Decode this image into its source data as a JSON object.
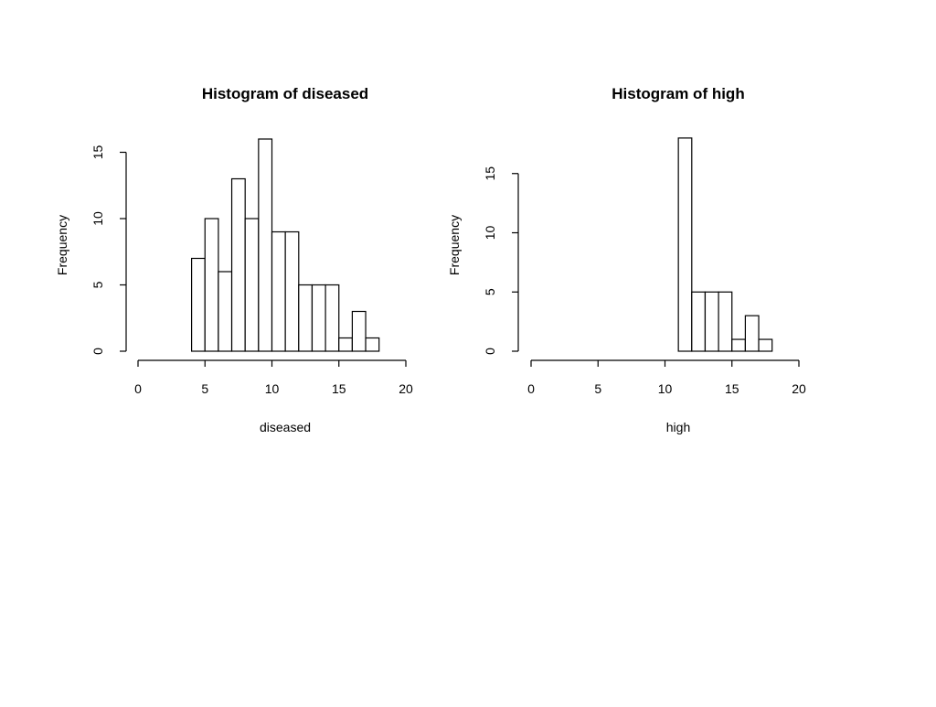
{
  "chart_data": [
    {
      "type": "bar",
      "title": "Histogram of diseased",
      "xlabel": "diseased",
      "ylabel": "Frequency",
      "xlim": [
        0,
        20
      ],
      "ylim": [
        0,
        16
      ],
      "x_ticks": [
        "0",
        "5",
        "10",
        "15",
        "20"
      ],
      "y_ticks": [
        "0",
        "5",
        "10",
        "15"
      ],
      "bin_width": 1,
      "bins": [
        {
          "start": 4,
          "end": 5,
          "count": 7
        },
        {
          "start": 5,
          "end": 6,
          "count": 10
        },
        {
          "start": 6,
          "end": 7,
          "count": 6
        },
        {
          "start": 7,
          "end": 8,
          "count": 13
        },
        {
          "start": 8,
          "end": 9,
          "count": 10
        },
        {
          "start": 9,
          "end": 10,
          "count": 16
        },
        {
          "start": 10,
          "end": 11,
          "count": 9
        },
        {
          "start": 11,
          "end": 12,
          "count": 9
        },
        {
          "start": 12,
          "end": 13,
          "count": 5
        },
        {
          "start": 13,
          "end": 14,
          "count": 5
        },
        {
          "start": 14,
          "end": 15,
          "count": 5
        },
        {
          "start": 15,
          "end": 16,
          "count": 1
        },
        {
          "start": 16,
          "end": 17,
          "count": 3
        },
        {
          "start": 17,
          "end": 18,
          "count": 1
        }
      ],
      "grid": false
    },
    {
      "type": "bar",
      "title": "Histogram of high",
      "xlabel": "high",
      "ylabel": "Frequency",
      "xlim": [
        0,
        20
      ],
      "ylim": [
        0,
        18
      ],
      "x_ticks": [
        "0",
        "5",
        "10",
        "15",
        "20"
      ],
      "y_ticks": [
        "0",
        "5",
        "10",
        "15"
      ],
      "bin_width": 1,
      "bins": [
        {
          "start": 11,
          "end": 12,
          "count": 18
        },
        {
          "start": 12,
          "end": 13,
          "count": 5
        },
        {
          "start": 13,
          "end": 14,
          "count": 5
        },
        {
          "start": 14,
          "end": 15,
          "count": 5
        },
        {
          "start": 15,
          "end": 16,
          "count": 1
        },
        {
          "start": 16,
          "end": 17,
          "count": 3
        },
        {
          "start": 17,
          "end": 18,
          "count": 1
        }
      ],
      "grid": false
    }
  ]
}
